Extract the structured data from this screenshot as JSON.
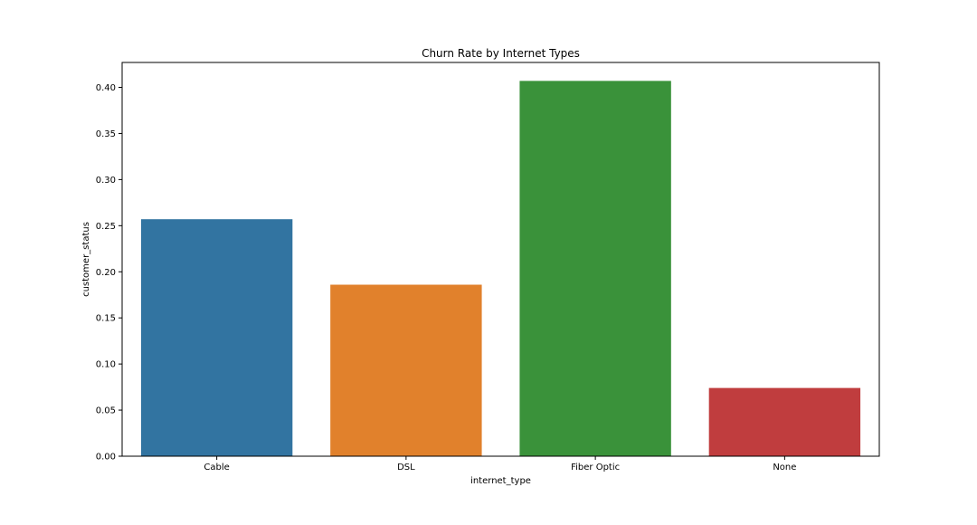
{
  "chart_data": {
    "type": "bar",
    "title": "Churn Rate by Internet Types",
    "xlabel": "internet_type",
    "ylabel": "customer_status",
    "categories": [
      "Cable",
      "DSL",
      "Fiber Optic",
      "None"
    ],
    "values": [
      0.257,
      0.186,
      0.407,
      0.074
    ],
    "colors": [
      "#3274a1",
      "#e1812c",
      "#3a923a",
      "#c03d3e"
    ],
    "ylim": [
      0,
      0.427
    ],
    "yticks": [
      0.0,
      0.05,
      0.1,
      0.15,
      0.2,
      0.25,
      0.3,
      0.35,
      0.4
    ],
    "ytick_labels": [
      "0.00",
      "0.05",
      "0.10",
      "0.15",
      "0.20",
      "0.25",
      "0.30",
      "0.35",
      "0.40"
    ],
    "grid": false,
    "legend": "none"
  }
}
